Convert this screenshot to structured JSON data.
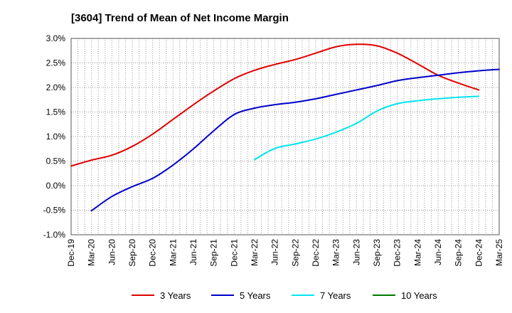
{
  "chart_data": {
    "type": "line",
    "title": "[3604]  Trend of Mean of Net Income Margin",
    "xlabel": "",
    "ylabel": "",
    "y_ticks": [
      3.0,
      2.5,
      2.0,
      1.5,
      1.0,
      0.5,
      0.0,
      -0.5,
      -1.0
    ],
    "y_tick_labels": [
      "3.0%",
      "2.5%",
      "2.0%",
      "1.5%",
      "1.0%",
      "0.5%",
      "0.0%",
      "-0.5%",
      "-1.0%"
    ],
    "ylim": [
      -1.0,
      3.0
    ],
    "x_tick_labels": [
      "Dec-19",
      "Mar-20",
      "Jun-20",
      "Sep-20",
      "Dec-20",
      "Mar-21",
      "Jun-21",
      "Sep-21",
      "Dec-21",
      "Mar-22",
      "Jun-22",
      "Sep-22",
      "Dec-22",
      "Mar-23",
      "Jun-23",
      "Sep-23",
      "Dec-23",
      "Mar-24",
      "Jun-24",
      "Sep-24",
      "Dec-24",
      "Mar-25"
    ],
    "grid": true,
    "legend_position": "bottom",
    "series": [
      {
        "name": "3 Years",
        "color": "#e00000",
        "start_index": 0,
        "values": [
          0.4,
          0.52,
          0.62,
          0.8,
          1.05,
          1.35,
          1.65,
          1.93,
          2.18,
          2.35,
          2.47,
          2.57,
          2.7,
          2.83,
          2.88,
          2.85,
          2.7,
          2.48,
          2.25,
          2.09,
          1.95
        ]
      },
      {
        "name": "5 Years",
        "color": "#0000cc",
        "start_index": 1,
        "values": [
          -0.51,
          -0.22,
          -0.02,
          0.15,
          0.42,
          0.75,
          1.12,
          1.45,
          1.58,
          1.65,
          1.7,
          1.77,
          1.86,
          1.95,
          2.04,
          2.14,
          2.2,
          2.25,
          2.3,
          2.34,
          2.37
        ]
      },
      {
        "name": "7 Years",
        "color": "#00e5ee",
        "start_index": 9,
        "values": [
          0.53,
          0.76,
          0.85,
          0.95,
          1.09,
          1.27,
          1.52,
          1.67,
          1.73,
          1.77,
          1.8,
          1.82
        ]
      },
      {
        "name": "10 Years",
        "color": "#007a00",
        "start_index": 0,
        "values": []
      }
    ]
  }
}
